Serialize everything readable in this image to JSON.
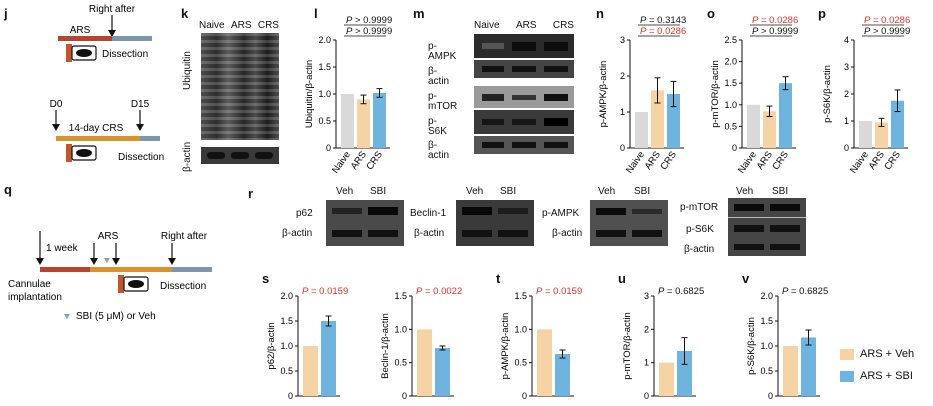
{
  "panels": {
    "j": "j",
    "k": "k",
    "l": "l",
    "m": "m",
    "n": "n",
    "o": "o",
    "p": "p",
    "q": "q",
    "r": "r",
    "s": "s",
    "t": "t",
    "u": "u",
    "v": "v"
  },
  "scheme_j": {
    "right_after": "Right after",
    "ars": "ARS",
    "dissection_1": "Dissection",
    "d0": "D0",
    "d15": "D15",
    "crs": "14-day CRS",
    "dissection_2": "Dissection"
  },
  "scheme_q": {
    "one_week": "1 week",
    "ars": "ARS",
    "right_after": "Right after",
    "cannulae": "Cannulae",
    "implantation": "implantation",
    "dissection": "Dissection",
    "sbi_note": "SBI (5 μM) or Veh"
  },
  "blot_k": {
    "groups": [
      "Naive",
      "ARS",
      "CRS"
    ],
    "label_top": "Ubiquitin",
    "label_bottom": "β-actin"
  },
  "blot_m": {
    "groups": [
      "Naive",
      "ARS",
      "CRS"
    ],
    "rows": [
      "p-AMPK",
      "β-actin",
      "p-mTOR",
      "p-S6K",
      "β-actin"
    ]
  },
  "blot_r": {
    "veh": "Veh",
    "sbi": "SBI",
    "blocks": [
      {
        "rows": [
          "p62",
          "β-actin"
        ]
      },
      {
        "rows": [
          "Beclin-1",
          "β-actin"
        ]
      },
      {
        "rows": [
          "p-AMPK",
          "β-actin"
        ]
      },
      {
        "rows": [
          "p-mTOR",
          "p-S6K",
          "β-actin"
        ]
      }
    ]
  },
  "colors": {
    "naive": "#d9d9d9",
    "ars": "#f5d3a5",
    "crs": "#6eb4de",
    "veh": "#f5d3a5",
    "sbi": "#6eb4de",
    "sig": "#e0322a",
    "ns": "#111111"
  },
  "legend": {
    "veh": "ARS + Veh",
    "sbi": "ARS + SBI"
  },
  "chart_data": [
    {
      "id": "l",
      "type": "bar",
      "categories": [
        "Naive",
        "ARS",
        "CRS"
      ],
      "values": [
        1.0,
        0.9,
        1.02
      ],
      "errors": [
        0,
        0.08,
        0.08
      ],
      "ylabel": "Ubiquitin/β-actin",
      "ylim": [
        0,
        2.0
      ],
      "yticks": [
        "0",
        "0.5",
        "1.0",
        "1.5",
        "2.0"
      ],
      "stats": [
        {
          "text": "P > 0.9999",
          "significant": false
        },
        {
          "text": "P > 0.9999",
          "significant": false
        }
      ]
    },
    {
      "id": "n",
      "type": "bar",
      "categories": [
        "Naive",
        "ARS",
        "CRS"
      ],
      "values": [
        1.0,
        1.6,
        1.5
      ],
      "errors": [
        0,
        0.35,
        0.35
      ],
      "ylabel": "p-AMPK/β-actin",
      "ylim": [
        0,
        3
      ],
      "yticks": [
        "0",
        "1",
        "2",
        "3"
      ],
      "stats": [
        {
          "text": "P = 0.3143",
          "significant": false
        },
        {
          "text": "P = 0.0286",
          "significant": true
        }
      ]
    },
    {
      "id": "o",
      "type": "bar",
      "categories": [
        "Naive",
        "ARS",
        "CRS"
      ],
      "values": [
        1.0,
        0.85,
        1.5
      ],
      "errors": [
        0,
        0.12,
        0.15
      ],
      "ylabel": "p-mTOR/β-actin",
      "ylim": [
        0,
        2.5
      ],
      "yticks": [
        "0",
        "0.5",
        "1.0",
        "1.5",
        "2.0",
        "2.5"
      ],
      "stats": [
        {
          "text": "P = 0.0286",
          "significant": true
        },
        {
          "text": "P > 0.9999",
          "significant": false
        }
      ]
    },
    {
      "id": "p",
      "type": "bar",
      "categories": [
        "Naive",
        "ARS",
        "CRS"
      ],
      "values": [
        1.0,
        0.95,
        1.75
      ],
      "errors": [
        0,
        0.15,
        0.4
      ],
      "ylabel": "p-S6K/β-actin",
      "ylim": [
        0,
        4
      ],
      "yticks": [
        "0",
        "1",
        "2",
        "3",
        "4"
      ],
      "stats": [
        {
          "text": "P = 0.0286",
          "significant": true
        },
        {
          "text": "P > 0.9999",
          "significant": false
        }
      ]
    },
    {
      "id": "s",
      "type": "bar",
      "categories": [
        "ARS + Veh",
        "ARS + SBI"
      ],
      "values": [
        1.0,
        1.5
      ],
      "errors": [
        0,
        0.1
      ],
      "ylabel": "p62/β-actin",
      "ylim": [
        0,
        2.0
      ],
      "yticks": [
        "0",
        "0.5",
        "1.0",
        "1.5",
        "2.0"
      ],
      "stats": [
        {
          "text": "P = 0.0159",
          "significant": true
        }
      ]
    },
    {
      "id": "s2",
      "type": "bar",
      "categories": [
        "ARS + Veh",
        "ARS + SBI"
      ],
      "values": [
        1.0,
        0.72
      ],
      "errors": [
        0,
        0.03
      ],
      "ylabel": "Beclin-1/β-actin",
      "ylim": [
        0,
        1.5
      ],
      "yticks": [
        "0",
        "0.5",
        "1.0",
        "1.5"
      ],
      "stats": [
        {
          "text": "P = 0.0022",
          "significant": true
        }
      ]
    },
    {
      "id": "t",
      "type": "bar",
      "categories": [
        "ARS + Veh",
        "ARS + SBI"
      ],
      "values": [
        1.0,
        0.63
      ],
      "errors": [
        0,
        0.06
      ],
      "ylabel": "p-AMPK/β-actin",
      "ylim": [
        0,
        1.5
      ],
      "yticks": [
        "0",
        "0.5",
        "1.0",
        "1.5"
      ],
      "stats": [
        {
          "text": "P = 0.0159",
          "significant": true
        }
      ]
    },
    {
      "id": "u",
      "type": "bar",
      "categories": [
        "ARS + Veh",
        "ARS + SBI"
      ],
      "values": [
        1.0,
        1.35
      ],
      "errors": [
        0,
        0.4
      ],
      "ylabel": "p-mTOR/β-actin",
      "ylim": [
        0,
        3
      ],
      "yticks": [
        "0",
        "1",
        "2",
        "3"
      ],
      "stats": [
        {
          "text": "P = 0.6825",
          "significant": false
        }
      ]
    },
    {
      "id": "v",
      "type": "bar",
      "categories": [
        "ARS + Veh",
        "ARS + SBI"
      ],
      "values": [
        1.0,
        1.17
      ],
      "errors": [
        0,
        0.15
      ],
      "ylabel": "p-S6K/β-actin",
      "ylim": [
        0,
        2.0
      ],
      "yticks": [
        "0",
        "0.5",
        "1.0",
        "1.5",
        "2.0"
      ],
      "stats": [
        {
          "text": "P = 0.6825",
          "significant": false
        }
      ]
    }
  ]
}
